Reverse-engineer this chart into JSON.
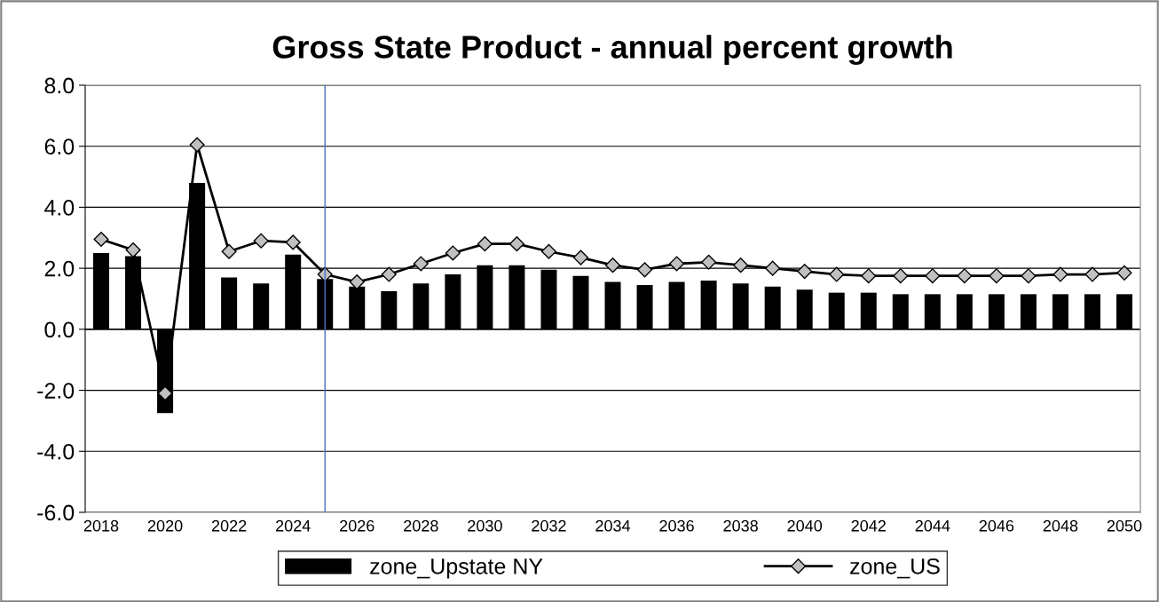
{
  "chart_data": {
    "type": "bar",
    "title": "Gross State Product - annual percent growth",
    "x": [
      2018,
      2019,
      2020,
      2021,
      2022,
      2023,
      2024,
      2025,
      2026,
      2027,
      2028,
      2029,
      2030,
      2031,
      2032,
      2033,
      2034,
      2035,
      2036,
      2037,
      2038,
      2039,
      2040,
      2041,
      2042,
      2043,
      2044,
      2045,
      2046,
      2047,
      2048,
      2049,
      2050
    ],
    "series": [
      {
        "name": "zone_Upstate NY",
        "color": "#000000",
        "values": [
          2.5,
          2.4,
          -2.75,
          4.8,
          1.7,
          1.5,
          2.45,
          1.65,
          1.4,
          1.25,
          1.5,
          1.8,
          2.1,
          2.1,
          1.95,
          1.75,
          1.55,
          1.45,
          1.55,
          1.6,
          1.5,
          1.4,
          1.3,
          1.2,
          1.2,
          1.15,
          1.15,
          1.15,
          1.15,
          1.15,
          1.15,
          1.15,
          1.15
        ]
      },
      {
        "name": "zone_US",
        "type": "line",
        "color": "#000000",
        "marker": "diamond",
        "values": [
          2.95,
          2.6,
          -2.1,
          6.05,
          2.55,
          2.9,
          2.85,
          1.8,
          1.55,
          1.8,
          2.15,
          2.5,
          2.8,
          2.8,
          2.55,
          2.35,
          2.1,
          1.95,
          2.15,
          2.2,
          2.1,
          2.0,
          1.9,
          1.8,
          1.75,
          1.75,
          1.75,
          1.75,
          1.75,
          1.75,
          1.8,
          1.8,
          1.85
        ]
      }
    ],
    "xlim": [
      2017.5,
      2050.5
    ],
    "xticks": [
      2018,
      2020,
      2022,
      2024,
      2026,
      2028,
      2030,
      2032,
      2034,
      2036,
      2038,
      2040,
      2042,
      2044,
      2046,
      2048,
      2050
    ],
    "ylim": [
      -6,
      8
    ],
    "yticks": [
      {
        "value": -6,
        "label": "-6.0"
      },
      {
        "value": -4,
        "label": "-4.0"
      },
      {
        "value": -2,
        "label": "-2.0"
      },
      {
        "value": 0,
        "label": "0.0"
      },
      {
        "value": 2,
        "label": "2.0"
      },
      {
        "value": 4,
        "label": "4.0"
      },
      {
        "value": 6,
        "label": "6.0"
      },
      {
        "value": 8,
        "label": "8.0"
      }
    ],
    "ref_lines": [
      {
        "axis": "x",
        "value": 2025,
        "color": "#4472c4"
      }
    ],
    "grid": "y",
    "legend": "bottom"
  }
}
